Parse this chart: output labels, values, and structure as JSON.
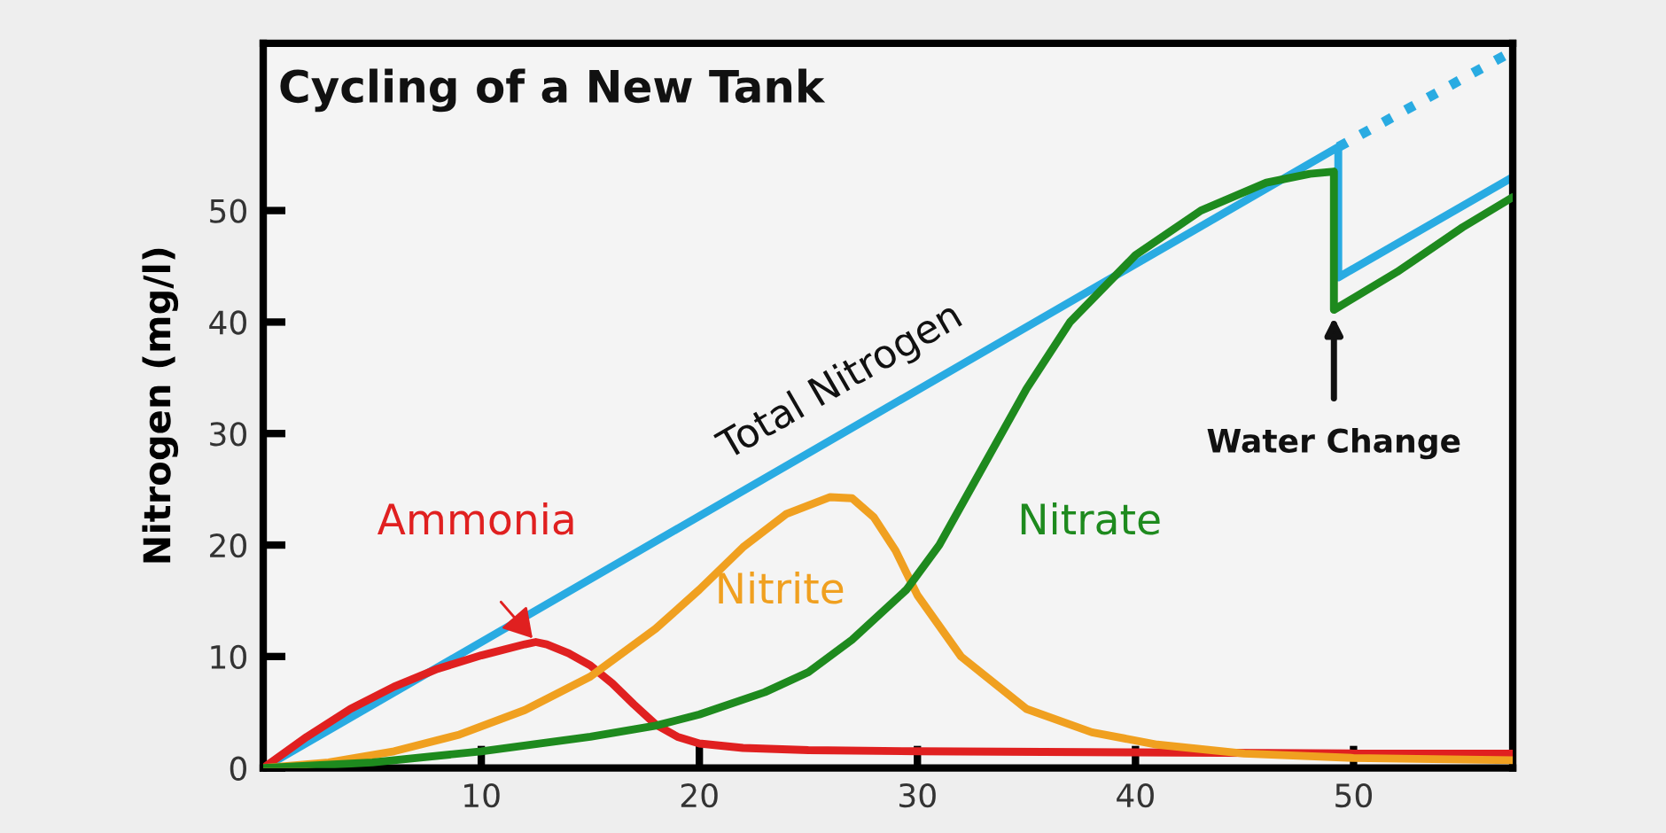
{
  "chart_data": {
    "type": "line",
    "title": "Cycling of a New Tank",
    "ylabel": "Nitrogen (mg/l)",
    "xlim": [
      0,
      57.3
    ],
    "ylim": [
      0,
      65
    ],
    "xticks": [
      10,
      20,
      30,
      40,
      50
    ],
    "yticks": [
      0,
      10,
      20,
      30,
      40,
      50
    ],
    "grid": false,
    "legend": false,
    "marker": "none",
    "series": [
      {
        "name": "Total Nitrogen",
        "color": "#29abe2",
        "x": [
          0,
          49.3,
          49.3,
          57.3
        ],
        "values": [
          0,
          55.7,
          44,
          53
        ]
      },
      {
        "color": "#29abe2",
        "line_style": "dotted",
        "x": [
          49.3,
          57.3
        ],
        "values": [
          55.7,
          64.3
        ]
      },
      {
        "name": "Ammonia",
        "color": "#e02020",
        "x": [
          0,
          2,
          4,
          6,
          8,
          10,
          12,
          12.5,
          13,
          14,
          15,
          16,
          17,
          18,
          19,
          20,
          22,
          25,
          30,
          40,
          50,
          57.3
        ],
        "values": [
          0,
          2.8,
          5.3,
          7.3,
          8.9,
          10.1,
          11.1,
          11.3,
          11.1,
          10.3,
          9.2,
          7.6,
          5.7,
          3.9,
          2.8,
          2.2,
          1.8,
          1.6,
          1.5,
          1.4,
          1.3,
          1.3
        ]
      },
      {
        "name": "Nitrite",
        "color": "#f0a020",
        "x": [
          0,
          3,
          6,
          9,
          12,
          15,
          18,
          20,
          22,
          24,
          26,
          27,
          28,
          29,
          30,
          32,
          35,
          38,
          41,
          45,
          50,
          57.3
        ],
        "values": [
          0,
          0.5,
          1.5,
          3,
          5.2,
          8.2,
          12.5,
          16,
          19.8,
          22.8,
          24.3,
          24.2,
          22.5,
          19.5,
          15.5,
          10,
          5.3,
          3.2,
          2.1,
          1.3,
          0.9,
          0.7
        ]
      },
      {
        "name": "Nitrate",
        "color": "#1e8a1e",
        "x": [
          0,
          5,
          10,
          15,
          18,
          20,
          23,
          25,
          27,
          29.5,
          31,
          33,
          35,
          37,
          40,
          43,
          46,
          48,
          49.1,
          49.1,
          52,
          55,
          57.3
        ],
        "values": [
          0,
          0.5,
          1.5,
          2.8,
          3.8,
          4.8,
          6.8,
          8.6,
          11.5,
          16,
          20,
          27,
          34,
          40,
          46,
          50,
          52.5,
          53.3,
          53.5,
          41.1,
          44.5,
          48.5,
          51.2
        ]
      }
    ],
    "annotations": [
      {
        "text": "Water Change",
        "x": 49.1,
        "y": 41.1
      }
    ]
  }
}
